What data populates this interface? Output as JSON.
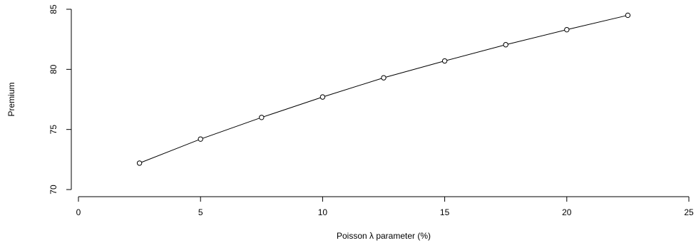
{
  "chart_data": {
    "type": "line",
    "title": "",
    "xlabel": "Poisson λ parameter (%)",
    "ylabel": "Premium",
    "xlim": [
      0,
      25
    ],
    "ylim": [
      70,
      85
    ],
    "x_ticks": [
      0,
      5,
      10,
      15,
      20,
      25
    ],
    "y_ticks": [
      70,
      75,
      80,
      85
    ],
    "grid": false,
    "marker": "open-circle",
    "series": [
      {
        "x": [
          2.5,
          5,
          7.5,
          10,
          12.5,
          15,
          17.5,
          20,
          22.5
        ],
        "y": [
          72.2,
          74.2,
          76.0,
          77.7,
          79.3,
          80.7,
          82.05,
          83.3,
          84.5
        ]
      }
    ]
  }
}
